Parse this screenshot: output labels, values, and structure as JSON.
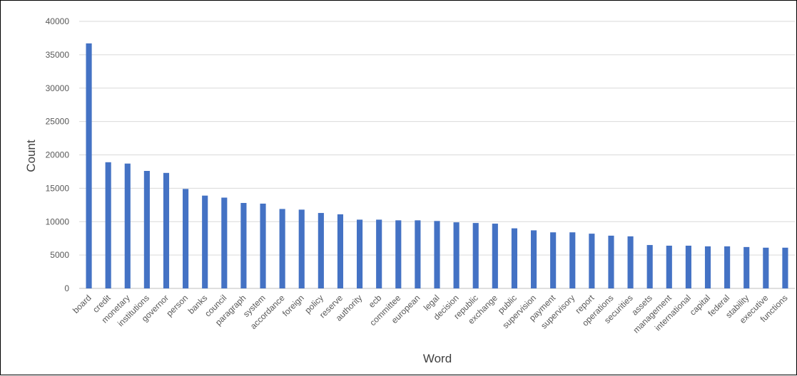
{
  "chart_data": {
    "type": "bar",
    "xlabel": "Word",
    "ylabel": "Count",
    "ylim": [
      0,
      40000
    ],
    "yticks": [
      0,
      5000,
      10000,
      15000,
      20000,
      25000,
      30000,
      35000,
      40000
    ],
    "grid": true,
    "legend": "none",
    "bar_color": "#4472C4",
    "categories": [
      "board",
      "credit",
      "monetary",
      "institutions",
      "governor",
      "person",
      "banks",
      "council",
      "paragraph",
      "system",
      "accordance",
      "foreign",
      "policy",
      "reserve",
      "authority",
      "ecb",
      "committee",
      "european",
      "legal",
      "decision",
      "republic",
      "exchange",
      "public",
      "supervision",
      "payment",
      "supervisory",
      "report",
      "operations",
      "securities",
      "assets",
      "management",
      "international",
      "capital",
      "federal",
      "stability",
      "executive",
      "functions"
    ],
    "values": [
      36700,
      18900,
      18700,
      17600,
      17300,
      14900,
      13900,
      13600,
      12800,
      12700,
      11900,
      11800,
      11300,
      11100,
      10300,
      10300,
      10200,
      10200,
      10100,
      9900,
      9800,
      9700,
      9000,
      8700,
      8400,
      8400,
      8200,
      7900,
      7800,
      6500,
      6400,
      6400,
      6300,
      6300,
      6200,
      6100,
      6100
    ]
  }
}
